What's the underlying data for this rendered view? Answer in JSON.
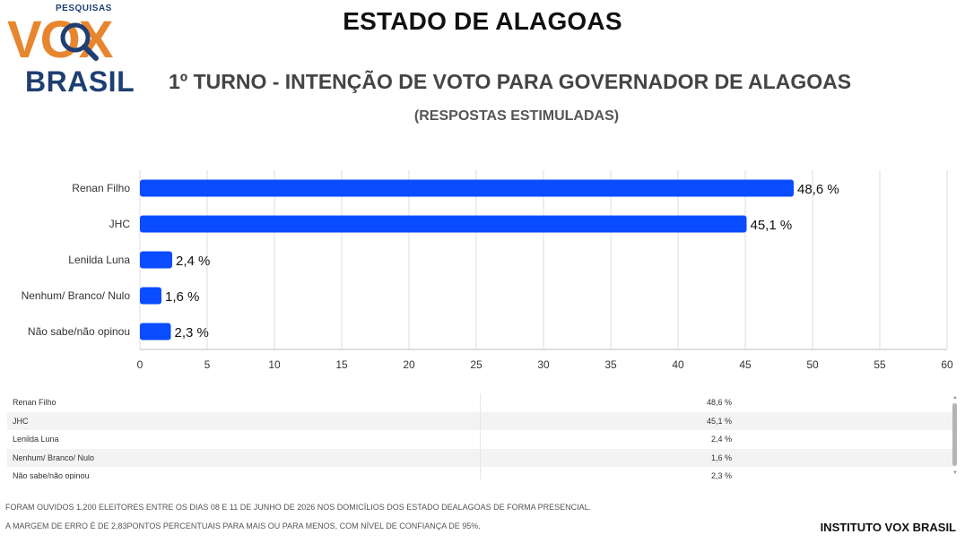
{
  "header": {
    "logo_top": "PESQUISAS",
    "logo_main": "VOX",
    "logo_bottom": "BRASIL",
    "title": "ESTADO DE ALAGOAS",
    "subtitle": "1º TURNO - INTENÇÃO DE VOTO PARA GOVERNADOR DE ALAGOAS",
    "subtitle2": "(RESPOSTAS ESTIMULADAS)"
  },
  "colors": {
    "bar": "#0a4cff",
    "logo_orange": "#e8862f",
    "logo_blue": "#1f3f73"
  },
  "chart_data": {
    "type": "bar",
    "orientation": "horizontal",
    "categories": [
      "Renan Filho",
      "JHC",
      "Lenilda Luna",
      "Nenhum/ Branco/ Nulo",
      "Não sabe/não opinou"
    ],
    "values": [
      48.6,
      45.1,
      2.4,
      1.6,
      2.3
    ],
    "value_labels": [
      "48,6 %",
      "45,1 %",
      "2,4 %",
      "1,6 %",
      "2,3 %"
    ],
    "xticks": [
      0,
      5,
      10,
      15,
      20,
      25,
      30,
      35,
      40,
      45,
      50,
      55,
      60
    ],
    "xlim": [
      0,
      60
    ],
    "grid": true
  },
  "table": {
    "rows": [
      {
        "name": "Renan Filho",
        "value": "48,6 %"
      },
      {
        "name": "JHC",
        "value": "45,1 %"
      },
      {
        "name": "Lenilda Luna",
        "value": "2,4 %"
      },
      {
        "name": "Nenhum/ Branco/ Nulo",
        "value": "1,6 %"
      },
      {
        "name": "Não sabe/não opinou",
        "value": "2,3 %"
      }
    ]
  },
  "notes": {
    "line1": "FORAM OUVIDOS 1.200 ELEITORES ENTRE OS DIAS 08 E 11 DE JUNHO DE 2026 NOS DOMICÍLIOS DOS ESTADO DEALAGOAS DE FORMA PRESENCIAL.",
    "line2": "A MARGEM DE ERRO É DE 2,83PONTOS PERCENTUAIS PARA MAIS OU PARA MENOS, COM NÍVEL DE CONFIANÇA DE 95%."
  },
  "footer": "INSTITUTO VOX BRASIL"
}
